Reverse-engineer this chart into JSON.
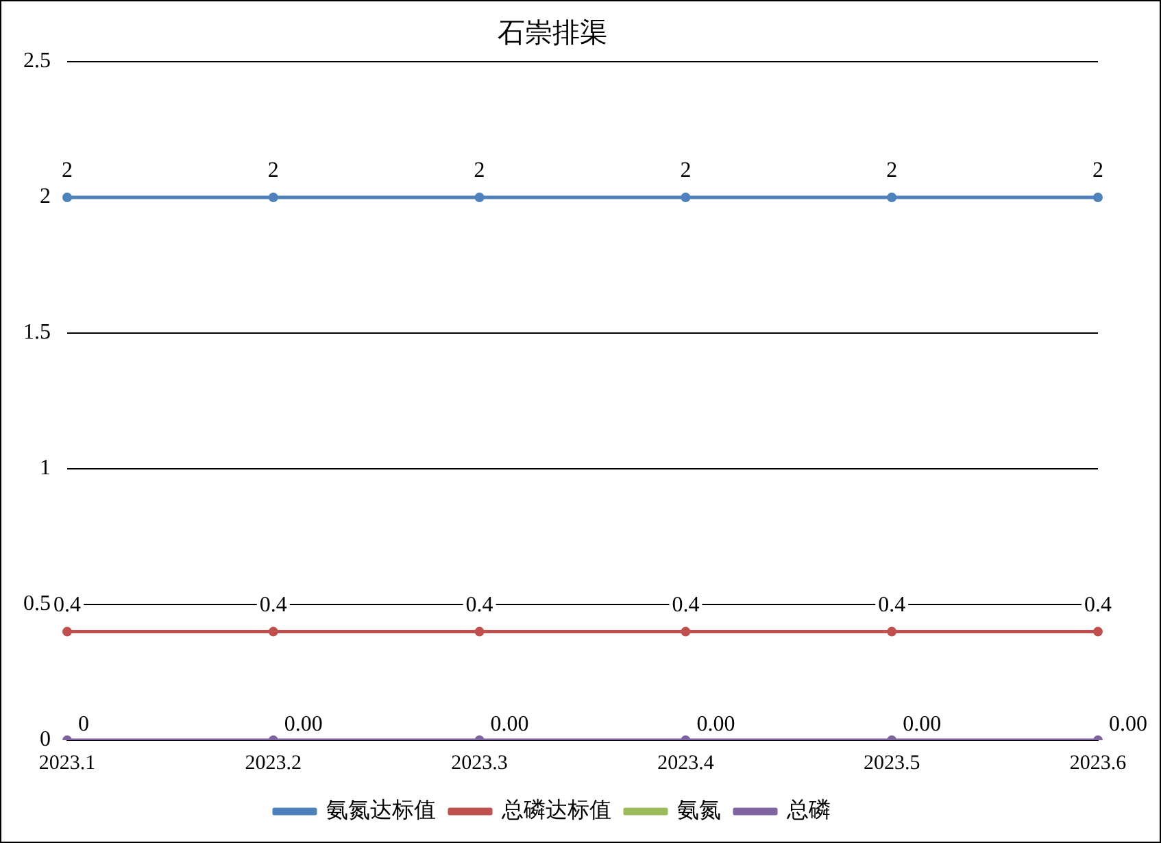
{
  "chart_data": {
    "type": "line",
    "title": "石崇排渠",
    "categories": [
      "2023.1",
      "2023.2",
      "2023.3",
      "2023.4",
      "2023.5",
      "2023.6"
    ],
    "series": [
      {
        "name": "氨氮达标值",
        "color": "#4f81bd",
        "values": [
          2,
          2,
          2,
          2,
          2,
          2
        ],
        "value_labels": [
          "2",
          "2",
          "2",
          "2",
          "2",
          "2"
        ]
      },
      {
        "name": "总磷达标值",
        "color": "#c0504d",
        "values": [
          0.4,
          0.4,
          0.4,
          0.4,
          0.4,
          0.4
        ],
        "value_labels": [
          "0.4",
          "0.4",
          "0.4",
          "0.4",
          "0.4",
          "0.4"
        ]
      },
      {
        "name": "氨氮",
        "color": "#9bbb59",
        "values": [
          null,
          null,
          null,
          null,
          null,
          null
        ]
      },
      {
        "name": "总磷",
        "color": "#8064a2",
        "values": [
          0,
          0,
          0,
          0,
          0,
          0
        ],
        "value_labels": [
          "0",
          "0.00",
          "0.00",
          "0.00",
          "0.00",
          "0.00"
        ]
      }
    ],
    "ylim": [
      0,
      2.5
    ],
    "yticks": [
      0,
      0.5,
      1,
      1.5,
      2,
      2.5
    ],
    "grid": "y",
    "legend": "bottom",
    "marker": "circle",
    "line_style": "solid"
  }
}
